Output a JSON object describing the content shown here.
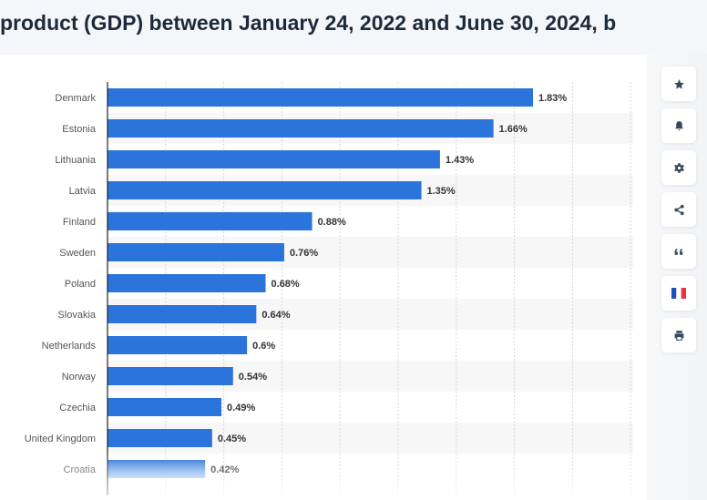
{
  "header": {
    "title": "product (GDP) between January 24, 2022 and June 30, 2024, b"
  },
  "toolbar": [
    {
      "icon": "star-icon",
      "label": "favorite"
    },
    {
      "icon": "bell-icon",
      "label": "notify"
    },
    {
      "icon": "gear-icon",
      "label": "settings"
    },
    {
      "icon": "share-icon",
      "label": "share"
    },
    {
      "icon": "quote-icon",
      "label": "cite"
    },
    {
      "icon": "french-flag-icon",
      "label": "language"
    },
    {
      "icon": "print-icon",
      "label": "print"
    }
  ],
  "chart_data": {
    "type": "bar",
    "orientation": "horizontal",
    "categories": [
      "Denmark",
      "Estonia",
      "Lithuania",
      "Latvia",
      "Finland",
      "Sweden",
      "Poland",
      "Slovakia",
      "Netherlands",
      "Norway",
      "Czechia",
      "United Kingdom",
      "Croatia"
    ],
    "values": [
      1.83,
      1.66,
      1.43,
      1.35,
      0.88,
      0.76,
      0.68,
      0.64,
      0.6,
      0.54,
      0.49,
      0.45,
      0.42
    ],
    "data_labels": [
      "1.83%",
      "1.66%",
      "1.43%",
      "1.35%",
      "0.88%",
      "0.76%",
      "0.68%",
      "0.64%",
      "0.6%",
      "0.54%",
      "0.49%",
      "0.45%",
      "0.42%"
    ],
    "xlim": [
      0,
      2.25
    ],
    "grid": true,
    "bar_color": "#2a74db"
  }
}
